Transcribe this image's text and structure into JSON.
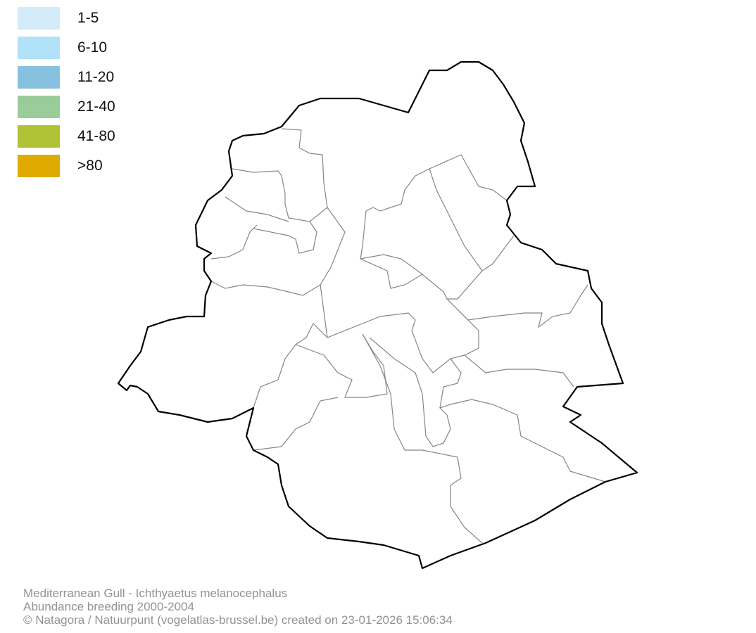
{
  "legend": {
    "items": [
      {
        "label": "1-5",
        "color": "#d4ebfa"
      },
      {
        "label": "6-10",
        "color": "#b2e2fa"
      },
      {
        "label": "11-20",
        "color": "#88c1e0"
      },
      {
        "label": "21-40",
        "color": "#99cc99"
      },
      {
        "label": "41-80",
        "color": "#b0c236"
      },
      {
        "label": ">80",
        "color": "#e0ab00"
      }
    ]
  },
  "map": {
    "region": "Brussels-Capital Region municipalities",
    "outline_color": "#000000",
    "boundary_color": "#8a8580",
    "fill": "#ffffff"
  },
  "footer": {
    "species": "Mediterranean Gull - Ichthyaetus melanocephalus",
    "subtitle": "Abundance breeding 2000-2004",
    "credit": "© Natagora / Natuurpunt (vogelatlas-brussel.be) created on 23-01-2026 15:06:34"
  }
}
